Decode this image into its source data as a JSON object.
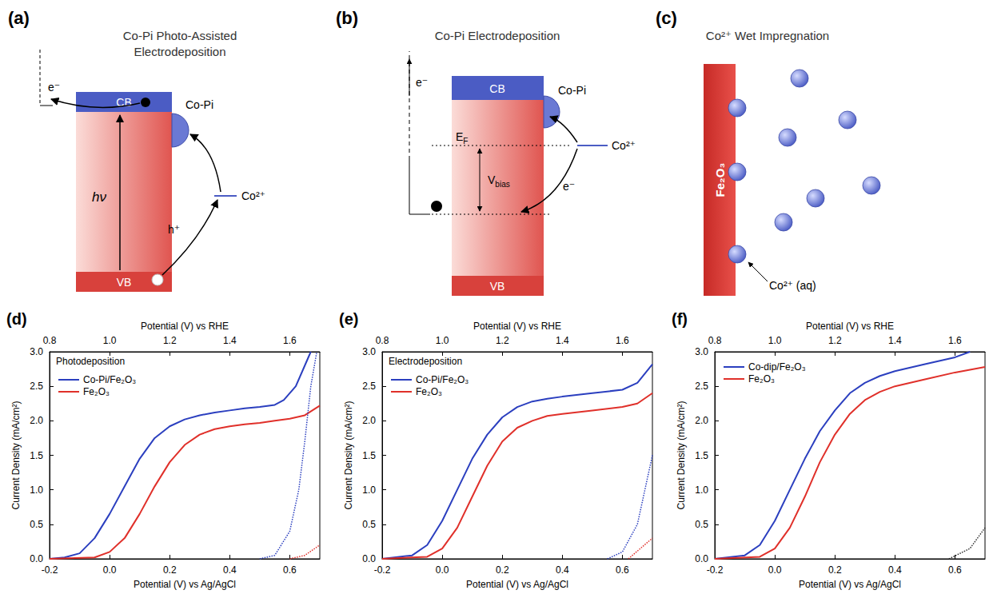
{
  "diagrams": [
    {
      "panel_label": "(a)",
      "title": "Co-Pi Photo-Assisted Electrodeposition",
      "cb": "CB",
      "vb": "VB",
      "photon": "hν",
      "catalyst": "Co-Pi",
      "ion": "Co²⁺",
      "electron": "e⁻",
      "hole": "h⁺"
    },
    {
      "panel_label": "(b)",
      "title": "Co-Pi Electrodeposition",
      "cb": "CB",
      "vb": "VB",
      "catalyst": "Co-Pi",
      "ion": "Co²⁺",
      "electron_top": "e⁻",
      "electron": "e⁻",
      "fermi": {
        "main": "E",
        "sub": "F"
      },
      "bias": {
        "main": "V",
        "sub": "bias"
      }
    },
    {
      "panel_label": "(c)",
      "title": "Co²⁺ Wet Impregnation",
      "substrate": "Fe₂O₃",
      "ion": "Co²⁺ (aq)"
    }
  ],
  "chart_data": [
    {
      "panel_label": "(d)",
      "type": "line",
      "annotations": [
        "Photodeposition"
      ],
      "x_label": "Potential (V) vs Ag/AgCl",
      "x2_label": "Potential (V) vs RHE",
      "y_label": "Current Density (mA/cm²)",
      "xlim": [
        -0.2,
        0.7
      ],
      "xticks": [
        -0.2,
        {
          "value": 0,
          "label": "0.0"
        },
        0.2,
        0.4,
        0.6
      ],
      "x2lim": [
        0.8,
        1.7
      ],
      "x2ticks": [
        0.8,
        {
          "value": 1,
          "label": "1.0"
        },
        1.2,
        1.4,
        1.6
      ],
      "ylim": [
        0,
        3
      ],
      "yticks": [
        {
          "value": 0,
          "label": "0.0"
        },
        0.5,
        {
          "value": 1,
          "label": "1.0"
        },
        1.5,
        {
          "value": 2,
          "label": "2.0"
        },
        2.5,
        {
          "value": 3,
          "label": "3.0"
        }
      ],
      "grid": false,
      "legend": "upper left",
      "series": [
        {
          "name": "Co-Pi/Fe₂O₃",
          "color": "#2b3fbf",
          "line_style": "solid",
          "x": [
            -0.2,
            -0.15,
            -0.1,
            -0.05,
            0.0,
            0.05,
            0.1,
            0.15,
            0.2,
            0.25,
            0.3,
            0.35,
            0.4,
            0.45,
            0.5,
            0.55,
            0.58,
            0.62,
            0.65,
            0.67
          ],
          "values": [
            0,
            0.02,
            0.08,
            0.3,
            0.65,
            1.05,
            1.45,
            1.75,
            1.92,
            2.02,
            2.08,
            2.12,
            2.15,
            2.18,
            2.2,
            2.23,
            2.3,
            2.5,
            2.8,
            3.0
          ]
        },
        {
          "name": "Fe₂O₃",
          "color": "#e0302a",
          "line_style": "solid",
          "x": [
            -0.2,
            -0.05,
            0.0,
            0.05,
            0.1,
            0.15,
            0.2,
            0.25,
            0.3,
            0.35,
            0.4,
            0.45,
            0.5,
            0.55,
            0.6,
            0.65,
            0.7
          ],
          "values": [
            0,
            0.02,
            0.1,
            0.3,
            0.65,
            1.05,
            1.4,
            1.65,
            1.8,
            1.88,
            1.92,
            1.95,
            1.97,
            2.0,
            2.03,
            2.08,
            2.22
          ]
        },
        {
          "color": "#2b3fbf",
          "line_style": "dotted",
          "x": [
            0.5,
            0.55,
            0.6,
            0.63,
            0.65,
            0.67,
            0.69
          ],
          "values": [
            0,
            0.05,
            0.4,
            1.0,
            1.7,
            2.5,
            3.0
          ]
        },
        {
          "color": "#e0302a",
          "line_style": "dotted",
          "x": [
            0.6,
            0.65,
            0.7
          ],
          "values": [
            0,
            0.05,
            0.2
          ]
        }
      ]
    },
    {
      "panel_label": "(e)",
      "type": "line",
      "annotations": [
        "Electrodeposition"
      ],
      "x_label": "Potential (V) vs Ag/AgCl",
      "x2_label": "Potential (V) vs RHE",
      "y_label": "Current Density (mA/cm²)",
      "xlim": [
        -0.2,
        0.7
      ],
      "xticks": [
        -0.2,
        {
          "value": 0,
          "label": "0.0"
        },
        0.2,
        0.4,
        0.6
      ],
      "x2lim": [
        0.8,
        1.7
      ],
      "x2ticks": [
        0.8,
        {
          "value": 1,
          "label": "1.0"
        },
        1.2,
        1.4,
        1.6
      ],
      "ylim": [
        0,
        3
      ],
      "yticks": [
        {
          "value": 0,
          "label": "0.0"
        },
        0.5,
        {
          "value": 1,
          "label": "1.0"
        },
        1.5,
        {
          "value": 2,
          "label": "2.0"
        },
        2.5,
        {
          "value": 3,
          "label": "3.0"
        }
      ],
      "grid": false,
      "legend": "upper left",
      "series": [
        {
          "name": "Co-Pi/Fe₂O₃",
          "color": "#2b3fbf",
          "line_style": "solid",
          "x": [
            -0.2,
            -0.1,
            -0.05,
            0.0,
            0.05,
            0.1,
            0.15,
            0.2,
            0.25,
            0.3,
            0.35,
            0.4,
            0.5,
            0.6,
            0.65,
            0.7
          ],
          "values": [
            0,
            0.05,
            0.2,
            0.55,
            1.0,
            1.45,
            1.8,
            2.05,
            2.2,
            2.28,
            2.32,
            2.35,
            2.4,
            2.45,
            2.55,
            2.82
          ]
        },
        {
          "name": "Fe₂O₃",
          "color": "#e0302a",
          "line_style": "solid",
          "x": [
            -0.2,
            -0.05,
            0.0,
            0.05,
            0.1,
            0.15,
            0.2,
            0.25,
            0.3,
            0.35,
            0.4,
            0.5,
            0.6,
            0.65,
            0.7
          ],
          "values": [
            0,
            0.03,
            0.15,
            0.45,
            0.9,
            1.35,
            1.7,
            1.9,
            2.0,
            2.07,
            2.1,
            2.15,
            2.2,
            2.25,
            2.4
          ]
        },
        {
          "color": "#2b3fbf",
          "line_style": "dotted",
          "x": [
            0.55,
            0.6,
            0.65,
            0.7
          ],
          "values": [
            0,
            0.1,
            0.5,
            1.5
          ]
        },
        {
          "color": "#e0302a",
          "line_style": "dotted",
          "x": [
            0.62,
            0.7
          ],
          "values": [
            0,
            0.3
          ]
        }
      ]
    },
    {
      "panel_label": "(f)",
      "type": "line",
      "x_label": "Potential (V) vs Ag/AgCl",
      "x2_label": "Potential (V) vs RHE",
      "y_label": "Current Density (mA/cm²)",
      "xlim": [
        -0.2,
        0.7
      ],
      "xticks": [
        -0.2,
        {
          "value": 0,
          "label": "0.0"
        },
        0.2,
        0.4,
        0.6
      ],
      "x2lim": [
        0.8,
        1.7
      ],
      "x2ticks": [
        0.8,
        {
          "value": 1,
          "label": "1.0"
        },
        1.2,
        1.4,
        1.6
      ],
      "ylim": [
        0,
        3
      ],
      "yticks": [
        {
          "value": 0,
          "label": "0.0"
        },
        0.5,
        {
          "value": 1,
          "label": "1.0"
        },
        1.5,
        {
          "value": 2,
          "label": "2.0"
        },
        2.5,
        {
          "value": 3,
          "label": "3.0"
        }
      ],
      "grid": false,
      "legend": "upper left",
      "series": [
        {
          "name": "Co-dip/Fe₂O₃",
          "color": "#2b3fbf",
          "line_style": "solid",
          "x": [
            -0.2,
            -0.1,
            -0.05,
            0.0,
            0.05,
            0.1,
            0.15,
            0.2,
            0.25,
            0.3,
            0.35,
            0.4,
            0.5,
            0.6,
            0.65
          ],
          "values": [
            0,
            0.05,
            0.2,
            0.55,
            1.0,
            1.45,
            1.85,
            2.15,
            2.4,
            2.55,
            2.65,
            2.72,
            2.82,
            2.92,
            3.0
          ]
        },
        {
          "name": "Fe₂O₃",
          "color": "#e0302a",
          "line_style": "solid",
          "x": [
            -0.2,
            -0.05,
            0.0,
            0.05,
            0.1,
            0.15,
            0.2,
            0.25,
            0.3,
            0.35,
            0.4,
            0.5,
            0.6,
            0.7
          ],
          "values": [
            0,
            0.03,
            0.15,
            0.45,
            0.9,
            1.4,
            1.8,
            2.1,
            2.3,
            2.42,
            2.5,
            2.6,
            2.7,
            2.78
          ]
        },
        {
          "color": "#333333",
          "line_style": "dotted",
          "x": [
            0.58,
            0.65,
            0.7
          ],
          "values": [
            0,
            0.15,
            0.45
          ]
        }
      ]
    }
  ]
}
